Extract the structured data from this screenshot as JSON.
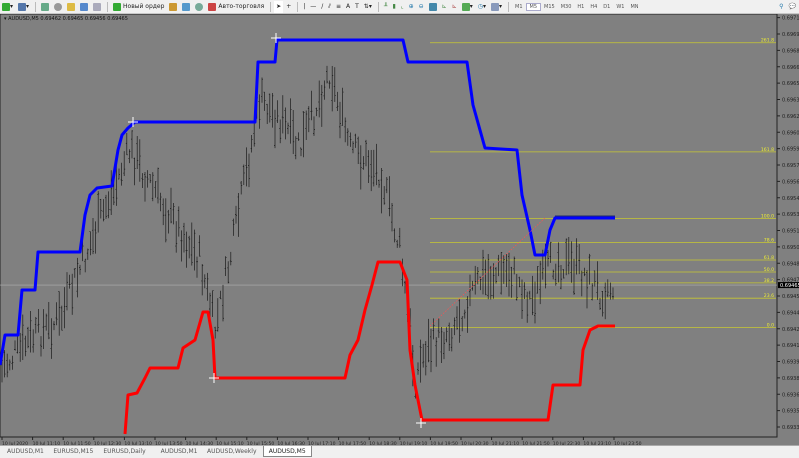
{
  "toolbar": {
    "new_order": "Новый ордер",
    "autotrading": "Авто-торговля",
    "timeframes": [
      "M1",
      "M5",
      "M15",
      "M30",
      "H1",
      "H4",
      "D1",
      "W1",
      "MN"
    ],
    "active_timeframe": "M5"
  },
  "chart": {
    "header": "AUDUSD,M5  0.69462 0.69465 0.69456 0.69465",
    "background": "#808080",
    "upper_channel_color": "#0000ff",
    "lower_channel_color": "#ff0000",
    "fib_color": "#c8c832",
    "price_labels": [
      "0.69710",
      "0.69695",
      "0.69680",
      "0.69665",
      "0.69650",
      "0.69635",
      "0.69620",
      "0.69605",
      "0.69590",
      "0.69575",
      "0.69560",
      "0.69545",
      "0.69530",
      "0.69515",
      "0.69500",
      "0.69485",
      "0.69470",
      "0.69455",
      "0.69440",
      "0.69425",
      "0.69410",
      "0.69395",
      "0.69380",
      "0.69365",
      "0.69350",
      "0.69335"
    ],
    "current_price": "0.69465",
    "fib_levels": [
      {
        "label": "261.8",
        "price": 0.69687
      },
      {
        "label": "161.8",
        "price": 0.69587
      },
      {
        "label": "100.0",
        "price": 0.69526
      },
      {
        "label": "78.6",
        "price": 0.69504
      },
      {
        "label": "61.8",
        "price": 0.69488
      },
      {
        "label": "50.0",
        "price": 0.69477
      },
      {
        "label": "38.2",
        "price": 0.69467
      },
      {
        "label": "23.6",
        "price": 0.69453
      },
      {
        "label": "0.0",
        "price": 0.69426
      }
    ],
    "time_labels": [
      "10 Jul 2020",
      "10 Jul 11:10",
      "10 Jul 11:50",
      "10 Jul 12:30",
      "10 Jul 13:10",
      "10 Jul 13:50",
      "10 Jul 14:30",
      "10 Jul 15:10",
      "10 Jul 15:50",
      "10 Jul 16:30",
      "10 Jul 17:10",
      "10 Jul 17:50",
      "10 Jul 18:30",
      "10 Jul 19:10",
      "10 Jul 19:50",
      "10 Jul 20:30",
      "10 Jul 21:10",
      "10 Jul 21:50",
      "10 Jul 22:30",
      "10 Jul 23:10",
      "10 Jul 23:50"
    ]
  },
  "tabs": [
    {
      "label": "AUDUSD,M1"
    },
    {
      "label": "EURUSD,M15"
    },
    {
      "label": "EURUSD,Daily"
    },
    {
      "label": "AUDUSD,M1"
    },
    {
      "label": "AUDUSD,Weekly"
    },
    {
      "label": "AUDUSD,M5",
      "active": true
    }
  ]
}
